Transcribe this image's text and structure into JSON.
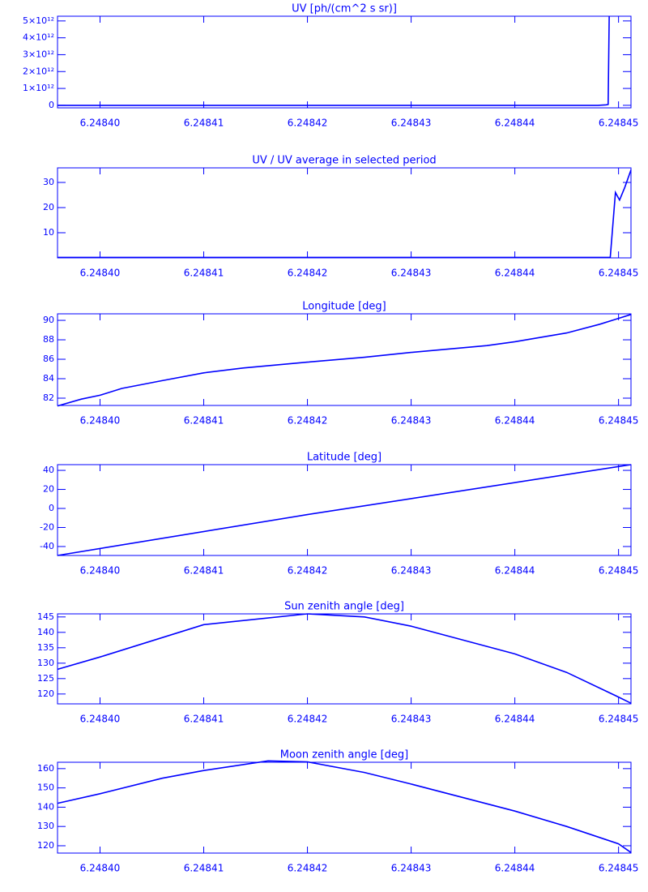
{
  "chart_data": [
    {
      "type": "line",
      "title": "UV [ph/(cm^2 s sr)]",
      "color": "#0000ff",
      "x": [
        6.2483959,
        6.248448,
        6.2484488,
        6.248449,
        6.2484491
      ],
      "values": [
        0,
        0,
        30000000000,
        50000000000,
        5280000000000
      ],
      "xlim": [
        6.2483959,
        6.2484512
      ],
      "xticks": [
        {
          "value": 6.2484,
          "label": "6.24840"
        },
        {
          "value": 6.24841,
          "label": "6.24841"
        },
        {
          "value": 6.24842,
          "label": "6.24842"
        },
        {
          "value": 6.24843,
          "label": "6.24843"
        },
        {
          "value": 6.24844,
          "label": "6.24844"
        },
        {
          "value": 6.24845,
          "label": "6.24845"
        }
      ],
      "ylim": [
        -150000000000,
        5280000000000
      ],
      "yticks": [
        0,
        {
          "value": 1000000000000,
          "label": "1×10¹²"
        },
        {
          "value": 2000000000000,
          "label": "2×10¹²"
        },
        {
          "value": 3000000000000,
          "label": "3×10¹²"
        },
        {
          "value": 4000000000000,
          "label": "4×10¹²"
        },
        {
          "value": 5000000000000,
          "label": "5×10¹²"
        }
      ]
    },
    {
      "type": "line",
      "title": "UV / UV average in selected period",
      "color": "#0000ff",
      "x": [
        6.2483959,
        6.2484492,
        6.2484497,
        6.2484501,
        6.2484506,
        6.2484512
      ],
      "values": [
        0.2,
        0.2,
        26,
        23,
        28,
        35
      ],
      "xlim": [
        6.2483959,
        6.2484512
      ],
      "xticks": [
        {
          "value": 6.2484,
          "label": "6.24840"
        },
        {
          "value": 6.24841,
          "label": "6.24841"
        },
        {
          "value": 6.24842,
          "label": "6.24842"
        },
        {
          "value": 6.24843,
          "label": "6.24843"
        },
        {
          "value": 6.24844,
          "label": "6.24844"
        },
        {
          "value": 6.24845,
          "label": "6.24845"
        }
      ],
      "ylim": [
        0,
        35.8
      ],
      "yticks": [
        10,
        20,
        30
      ]
    },
    {
      "type": "line",
      "title": "Longitude [deg]",
      "color": "#0000ff",
      "x": [
        6.2483959,
        6.2483982,
        6.2484,
        6.2484021,
        6.248406,
        6.24841,
        6.2484138,
        6.24842,
        6.2484255,
        6.24843,
        6.2484373,
        6.24844,
        6.248445,
        6.2484482,
        6.24845,
        6.2484512
      ],
      "values": [
        81.2,
        81.9,
        82.3,
        83.0,
        83.8,
        84.6,
        85.1,
        85.7,
        86.2,
        86.7,
        87.4,
        87.8,
        88.7,
        89.6,
        90.2,
        90.6
      ],
      "xlim": [
        6.2483959,
        6.2484512
      ],
      "xticks": [
        {
          "value": 6.2484,
          "label": "6.24840"
        },
        {
          "value": 6.24841,
          "label": "6.24841"
        },
        {
          "value": 6.24842,
          "label": "6.24842"
        },
        {
          "value": 6.24843,
          "label": "6.24843"
        },
        {
          "value": 6.24844,
          "label": "6.24844"
        },
        {
          "value": 6.24845,
          "label": "6.24845"
        }
      ],
      "ylim": [
        81.25,
        90.67
      ],
      "yticks": [
        82,
        84,
        86,
        88,
        90
      ]
    },
    {
      "type": "line",
      "title": "Latitude [deg]",
      "color": "#0000ff",
      "x": [
        6.2483959,
        6.24842,
        6.2484512
      ],
      "values": [
        -49.4,
        -6.5,
        46
      ],
      "xlim": [
        6.2483959,
        6.2484512
      ],
      "xticks": [
        {
          "value": 6.2484,
          "label": "6.24840"
        },
        {
          "value": 6.24841,
          "label": "6.24841"
        },
        {
          "value": 6.24842,
          "label": "6.24842"
        },
        {
          "value": 6.24843,
          "label": "6.24843"
        },
        {
          "value": 6.24844,
          "label": "6.24844"
        },
        {
          "value": 6.24845,
          "label": "6.24845"
        }
      ],
      "ylim": [
        -49.4,
        46
      ],
      "yticks": [
        -40,
        -20,
        0,
        20,
        40
      ]
    },
    {
      "type": "line",
      "title": "Sun zenith angle [deg]",
      "color": "#0000ff",
      "x": [
        6.2483959,
        6.2484,
        6.24841,
        6.24842,
        6.2484255,
        6.24843,
        6.24844,
        6.248445,
        6.24845,
        6.2484512
      ],
      "values": [
        128,
        132,
        142.5,
        146,
        145,
        142,
        133,
        127,
        119,
        117
      ],
      "xlim": [
        6.2483959,
        6.2484512
      ],
      "xticks": [
        {
          "value": 6.2484,
          "label": "6.24840"
        },
        {
          "value": 6.24841,
          "label": "6.24841"
        },
        {
          "value": 6.24842,
          "label": "6.24842"
        },
        {
          "value": 6.24843,
          "label": "6.24843"
        },
        {
          "value": 6.24844,
          "label": "6.24844"
        },
        {
          "value": 6.24845,
          "label": "6.24845"
        }
      ],
      "ylim": [
        116.8,
        146
      ],
      "yticks": [
        120,
        125,
        130,
        135,
        140,
        145
      ]
    },
    {
      "type": "line",
      "title": "Moon zenith angle [deg]",
      "color": "#0000ff",
      "x": [
        6.2483959,
        6.2484,
        6.248406,
        6.24841,
        6.2484162,
        6.24842,
        6.2484255,
        6.24843,
        6.24844,
        6.248445,
        6.24845,
        6.2484512
      ],
      "values": [
        142,
        147,
        155,
        159,
        164,
        163.5,
        158,
        152,
        138,
        130,
        121,
        116.5
      ],
      "xlim": [
        6.2483959,
        6.2484512
      ],
      "xticks": [
        {
          "value": 6.2484,
          "label": "6.24840"
        },
        {
          "value": 6.24841,
          "label": "6.24841"
        },
        {
          "value": 6.24842,
          "label": "6.24842"
        },
        {
          "value": 6.24843,
          "label": "6.24843"
        },
        {
          "value": 6.24844,
          "label": "6.24844"
        },
        {
          "value": 6.24845,
          "label": "6.24845"
        }
      ],
      "ylim": [
        116.2,
        163.3
      ],
      "yticks": [
        120,
        130,
        140,
        150,
        160
      ]
    }
  ]
}
